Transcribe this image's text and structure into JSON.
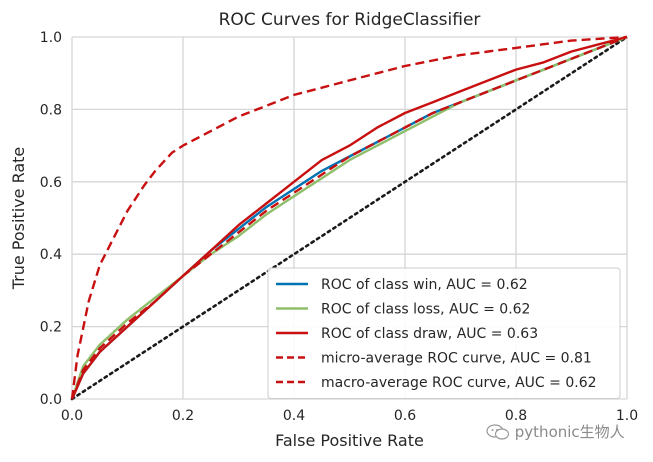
{
  "chart_data": {
    "type": "line",
    "title": "ROC Curves for RidgeClassifier",
    "xlabel": "False Positive Rate",
    "ylabel": "True Positive Rate",
    "xlim": [
      0.0,
      1.0
    ],
    "ylim": [
      0.0,
      1.0
    ],
    "xticks": [
      "0.0",
      "0.2",
      "0.4",
      "0.6",
      "0.8",
      "1.0"
    ],
    "yticks": [
      "0.0",
      "0.2",
      "0.4",
      "0.6",
      "0.8",
      "1.0"
    ],
    "grid": true,
    "legend_position": "lower-right",
    "series": [
      {
        "name": "ROC of class win, AUC = 0.62",
        "color": "#0072b2",
        "style": "solid",
        "x": [
          0,
          0.02,
          0.05,
          0.1,
          0.15,
          0.2,
          0.25,
          0.3,
          0.35,
          0.4,
          0.45,
          0.5,
          0.55,
          0.6,
          0.65,
          0.7,
          0.75,
          0.8,
          0.85,
          0.9,
          0.95,
          1.0
        ],
        "y": [
          0,
          0.07,
          0.13,
          0.2,
          0.27,
          0.34,
          0.41,
          0.47,
          0.53,
          0.58,
          0.63,
          0.67,
          0.71,
          0.75,
          0.79,
          0.82,
          0.85,
          0.88,
          0.91,
          0.94,
          0.97,
          1.0
        ]
      },
      {
        "name": "ROC of class loss, AUC = 0.62",
        "color": "#8fbf6a",
        "style": "solid",
        "x": [
          0,
          0.02,
          0.05,
          0.1,
          0.15,
          0.2,
          0.25,
          0.3,
          0.35,
          0.4,
          0.45,
          0.5,
          0.55,
          0.6,
          0.65,
          0.7,
          0.75,
          0.8,
          0.85,
          0.9,
          0.95,
          1.0
        ],
        "y": [
          0,
          0.09,
          0.15,
          0.22,
          0.28,
          0.34,
          0.4,
          0.45,
          0.51,
          0.56,
          0.61,
          0.66,
          0.7,
          0.74,
          0.78,
          0.82,
          0.85,
          0.88,
          0.91,
          0.94,
          0.97,
          1.0
        ]
      },
      {
        "name": "ROC of class draw, AUC = 0.63",
        "color": "#c81010",
        "style": "solid",
        "x": [
          0,
          0.02,
          0.05,
          0.1,
          0.15,
          0.2,
          0.25,
          0.3,
          0.35,
          0.4,
          0.45,
          0.5,
          0.55,
          0.6,
          0.65,
          0.7,
          0.75,
          0.8,
          0.85,
          0.9,
          0.95,
          1.0
        ],
        "y": [
          0,
          0.07,
          0.13,
          0.2,
          0.27,
          0.34,
          0.41,
          0.48,
          0.54,
          0.6,
          0.66,
          0.7,
          0.75,
          0.79,
          0.82,
          0.85,
          0.88,
          0.91,
          0.93,
          0.96,
          0.98,
          1.0
        ]
      },
      {
        "name": "micro-average ROC curve, AUC = 0.81",
        "color": "#c81010",
        "style": "dashed",
        "x": [
          0,
          0.01,
          0.03,
          0.05,
          0.08,
          0.1,
          0.13,
          0.15,
          0.18,
          0.2,
          0.25,
          0.3,
          0.35,
          0.4,
          0.45,
          0.5,
          0.55,
          0.6,
          0.65,
          0.7,
          0.75,
          0.8,
          0.85,
          0.9,
          0.95,
          1.0
        ],
        "y": [
          0,
          0.12,
          0.27,
          0.37,
          0.46,
          0.52,
          0.59,
          0.63,
          0.68,
          0.7,
          0.74,
          0.78,
          0.81,
          0.84,
          0.86,
          0.88,
          0.9,
          0.92,
          0.935,
          0.95,
          0.96,
          0.97,
          0.98,
          0.99,
          0.995,
          1.0
        ]
      },
      {
        "name": "macro-average ROC curve, AUC = 0.62",
        "color": "#c81010",
        "style": "dashed",
        "x": [
          0,
          0.02,
          0.05,
          0.1,
          0.15,
          0.2,
          0.25,
          0.3,
          0.35,
          0.4,
          0.45,
          0.5,
          0.55,
          0.6,
          0.65,
          0.7,
          0.75,
          0.8,
          0.85,
          0.9,
          0.95,
          1.0
        ],
        "y": [
          0,
          0.08,
          0.14,
          0.21,
          0.27,
          0.34,
          0.4,
          0.46,
          0.52,
          0.57,
          0.62,
          0.67,
          0.71,
          0.75,
          0.79,
          0.82,
          0.85,
          0.88,
          0.91,
          0.94,
          0.97,
          1.0
        ]
      },
      {
        "name": "chance",
        "color": "#1a1a1a",
        "style": "dotted",
        "legend": false,
        "x": [
          0,
          1.0
        ],
        "y": [
          0,
          1.0
        ]
      }
    ]
  },
  "watermark": {
    "text": "pythonic生物人",
    "icon": "wechat-bubble-icon"
  }
}
